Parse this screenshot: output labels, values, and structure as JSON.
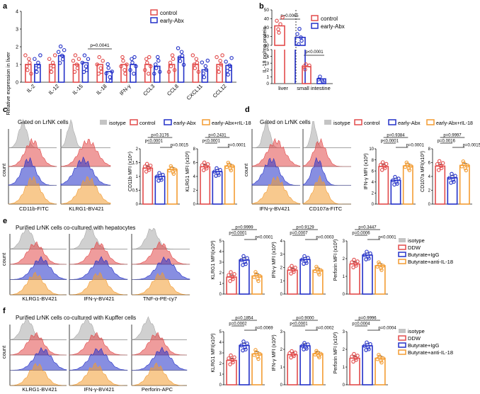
{
  "colors": {
    "red": "#e24b4b",
    "blue": "#2431c8",
    "orange": "#f39c32",
    "grey": "#9a9a9a"
  },
  "panel_a": {
    "letter": "a",
    "ylabel": "Relative expression in liver",
    "legend": [
      "control",
      "early-Abx"
    ],
    "pval": "p=0.0041"
  },
  "panel_b": {
    "letter": "b",
    "ylabel": "IL-18 pg/mg protein",
    "legend": [
      "control",
      "early-Abx"
    ],
    "pvals": [
      "p=0.0065",
      "p<0.0001"
    ],
    "xlabels": [
      "liver",
      "small intestine"
    ]
  },
  "panel_c": {
    "letter": "c",
    "gate": "Gated on LrNK cells",
    "legend": [
      "isotype",
      "control",
      "early-Abx",
      "early-Abx+rIL-18"
    ],
    "count": "count",
    "flow_x": [
      "CD11b-FITC",
      "KLRG1-BV421"
    ],
    "bar1": {
      "ylabel": "CD11b MFI (x10⁴)",
      "p": [
        "p=0.3176",
        "p<0.0001",
        "p=0.0015"
      ]
    },
    "bar2": {
      "ylabel": "KLRG1 MFI (x10³)",
      "p": [
        "p=0.2431",
        "p<0.0001",
        "p=0.0001"
      ]
    }
  },
  "panel_d": {
    "letter": "d",
    "gate": "Gated on LrNK cells",
    "legend": [
      "isotype",
      "control",
      "early-Abx",
      "early-Abx+rIL-18"
    ],
    "count": "count",
    "flow_x": [
      "IFN-γ-BV421",
      "CD107a-FITC"
    ],
    "bar1": {
      "ylabel": "IFN-γ MFI (x10³)",
      "p": [
        "p=0.9384",
        "p<0.0001",
        "p=0.0001"
      ]
    },
    "bar2": {
      "ylabel": "CD107a MFI(x10³)",
      "p": [
        "p=0.9997",
        "p=0.0016",
        "p=0.0015"
      ]
    }
  },
  "panel_e": {
    "letter": "e",
    "title": "Purified LrNK cells co-cultured with hepatocytes",
    "count": "count",
    "flow_x": [
      "KLRG1-BV421",
      "IFN-γ-BV421",
      "TNF-α-PE-cy7"
    ],
    "legend": [
      "isotype",
      "DDW",
      "Butyrate+IgG",
      "Butyrate+anti-IL-18"
    ],
    "bar1": {
      "ylabel": "KLRG1 MFI(x10³)",
      "p": [
        "p=0.9999",
        "p<0.0001",
        "p<0.0001"
      ]
    },
    "bar2": {
      "ylabel": "IFN-γ MFI (x10³)",
      "p": [
        "p=0.9129",
        "p=0.0007",
        "p=0.0003"
      ]
    },
    "bar3": {
      "ylabel": "Perforin MFI (x10³)",
      "p": [
        "p=0.3447",
        "p=0.0006",
        "p<0.0001"
      ]
    }
  },
  "panel_f": {
    "letter": "f",
    "title": "Purified LrNK cells co-cultured with Kupffer cells",
    "count": "count",
    "flow_x": [
      "KLRG1-BV421",
      "IFN-γ-BV421",
      "Perforin-APC"
    ],
    "legend": [
      "isotype",
      "DDW",
      "Butyrate+IgG",
      "Butyrate+anti-IL-18"
    ],
    "bar1": {
      "ylabel": "KLRG1 MFI(x10³)",
      "p": [
        "p=0.1854",
        "p=0.0002",
        "p=0.0069"
      ]
    },
    "bar2": {
      "ylabel": "IFN-γ MFI (x10³)",
      "p": [
        "p=0.9000",
        "p<0.0001",
        "p=0.0002"
      ]
    },
    "bar3": {
      "ylabel": "Perforin MFI (x10³)",
      "p": [
        "p=0.9996",
        "p=0.0004",
        "p=0.0004"
      ]
    }
  },
  "chart_data": [
    {
      "id": "a",
      "type": "bar",
      "categories": [
        "IL-2",
        "IL-12",
        "IL-15",
        "IL-18",
        "IFN-γ",
        "CCL3",
        "CCL8",
        "CXCL11",
        "CCL12"
      ],
      "series": [
        {
          "name": "control",
          "values": [
            1.0,
            1.0,
            1.0,
            1.0,
            1.0,
            1.0,
            1.0,
            1.0,
            1.0
          ]
        },
        {
          "name": "early-Abx",
          "values": [
            1.0,
            1.5,
            1.1,
            0.6,
            1.0,
            0.9,
            1.4,
            0.7,
            0.95
          ]
        }
      ],
      "ylim": [
        0,
        4
      ],
      "yticks": [
        0,
        1,
        2,
        3,
        4
      ],
      "ylabel": "Relative expression in liver"
    },
    {
      "id": "b",
      "type": "bar",
      "categories": [
        "liver",
        "small intestine"
      ],
      "series": [
        {
          "name": "control",
          "values": [
            32,
            2.5
          ]
        },
        {
          "name": "early-Abx",
          "values": [
            19,
            0.7
          ]
        }
      ],
      "yticks_top": [
        10,
        20,
        30,
        40,
        50
      ],
      "yticks_bottom": [
        0,
        1,
        2,
        3,
        4,
        5
      ],
      "ylabel": "IL-18 pg/mg protein"
    },
    {
      "id": "c1",
      "type": "bar",
      "categories": [
        "control",
        "early-Abx",
        "early-Abx+rIL-18"
      ],
      "values": [
        1.3,
        1.0,
        1.25
      ],
      "ylim": [
        0,
        2
      ],
      "yticks": [
        0.0,
        0.5,
        1.0,
        1.5,
        2.0
      ]
    },
    {
      "id": "c2",
      "type": "bar",
      "categories": [
        "control",
        "early-Abx",
        "early-Abx+rIL-18"
      ],
      "values": [
        5.4,
        4.7,
        5.5
      ],
      "ylim": [
        0,
        8
      ],
      "yticks": [
        0,
        2,
        4,
        6,
        8
      ]
    },
    {
      "id": "d1",
      "type": "bar",
      "categories": [
        "control",
        "early-Abx",
        "early-Abx+rIL-18"
      ],
      "values": [
        6.8,
        4.3,
        6.9
      ],
      "ylim": [
        0,
        10
      ],
      "yticks": [
        0,
        2,
        4,
        6,
        8,
        10
      ]
    },
    {
      "id": "d2",
      "type": "bar",
      "categories": [
        "control",
        "early-Abx",
        "early-Abx+rIL-18"
      ],
      "values": [
        5.5,
        3.8,
        5.6
      ],
      "ylim": [
        0,
        8
      ],
      "yticks": [
        0,
        2,
        4,
        6,
        8
      ]
    },
    {
      "id": "e1",
      "type": "bar",
      "categories": [
        "DDW",
        "Butyrate+IgG",
        "Butyrate+anti-IL-18"
      ],
      "values": [
        1.6,
        3.2,
        1.7
      ],
      "ylim": [
        0,
        5
      ],
      "yticks": [
        0,
        1,
        2,
        3,
        4,
        5
      ]
    },
    {
      "id": "e2",
      "type": "bar",
      "categories": [
        "DDW",
        "Butyrate+IgG",
        "Butyrate+anti-IL-18"
      ],
      "values": [
        1.8,
        2.6,
        1.8
      ],
      "ylim": [
        0,
        4
      ],
      "yticks": [
        0,
        1,
        2,
        3,
        4
      ]
    },
    {
      "id": "e3",
      "type": "bar",
      "categories": [
        "DDW",
        "Butyrate+IgG",
        "Butyrate+anti-IL-18"
      ],
      "values": [
        1.7,
        2.2,
        1.6
      ],
      "ylim": [
        0,
        3
      ],
      "yticks": [
        0,
        1,
        2,
        3
      ]
    },
    {
      "id": "f1",
      "type": "bar",
      "categories": [
        "DDW",
        "Butyrate+IgG",
        "Butyrate+anti-IL-18"
      ],
      "values": [
        2.3,
        3.7,
        2.9
      ],
      "ylim": [
        0,
        5
      ],
      "yticks": [
        0,
        1,
        2,
        3,
        4,
        5
      ]
    },
    {
      "id": "f2",
      "type": "bar",
      "categories": [
        "DDW",
        "Butyrate+IgG",
        "Butyrate+anti-IL-18"
      ],
      "values": [
        1.7,
        2.2,
        1.75
      ],
      "ylim": [
        0,
        3
      ],
      "yticks": [
        0,
        1,
        2,
        3
      ]
    },
    {
      "id": "f3",
      "type": "bar",
      "categories": [
        "DDW",
        "Butyrate+IgG",
        "Butyrate+anti-IL-18"
      ],
      "values": [
        1.5,
        2.2,
        1.5
      ],
      "ylim": [
        0,
        3
      ],
      "yticks": [
        0,
        1,
        2,
        3
      ]
    }
  ]
}
